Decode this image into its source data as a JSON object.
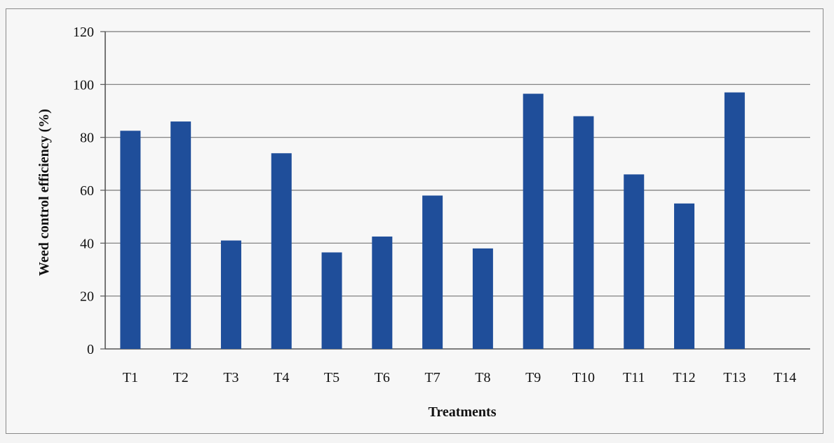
{
  "chart_data": {
    "type": "bar",
    "title": "",
    "xlabel": "Treatments",
    "ylabel": "Weed control efficiency (%)",
    "ylim": [
      0,
      120
    ],
    "yticks": [
      0,
      20,
      40,
      60,
      80,
      100,
      120
    ],
    "grid": true,
    "legend": "none",
    "bar_color": "#1f4e9a",
    "categories": [
      "T1",
      "T2",
      "T3",
      "T4",
      "T5",
      "T6",
      "T7",
      "T8",
      "T9",
      "T10",
      "T11",
      "T12",
      "T13",
      "T14"
    ],
    "values": [
      82.5,
      86,
      41,
      74,
      36.5,
      42.5,
      58,
      38,
      96.5,
      88,
      66,
      55,
      97,
      0
    ]
  }
}
